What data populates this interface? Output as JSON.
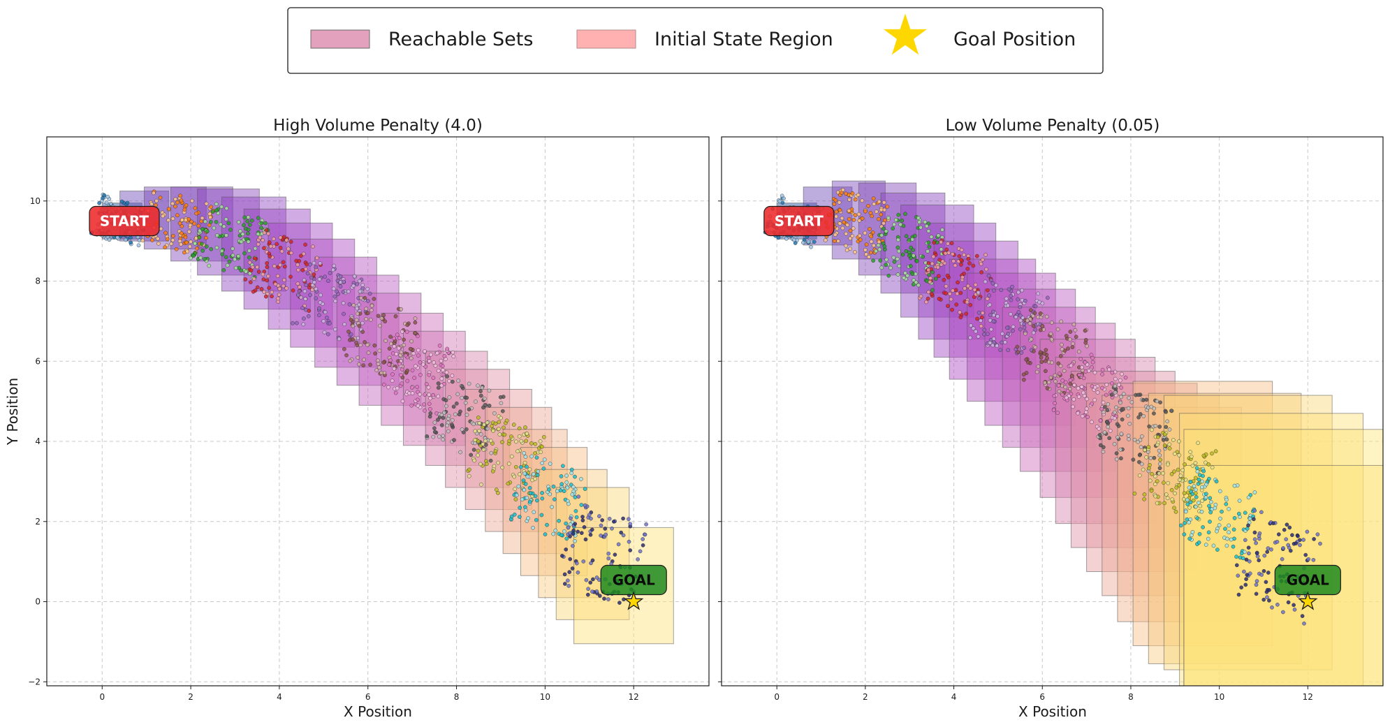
{
  "legend": {
    "items": [
      {
        "label": "Reachable Sets",
        "swatch": "rect",
        "color": "#e3a1bd"
      },
      {
        "label": "Initial State Region",
        "swatch": "rect",
        "color": "#ffb0b0"
      },
      {
        "label": "Goal Position",
        "swatch": "star",
        "color": "#ffd700"
      }
    ]
  },
  "chart_data": [
    {
      "type": "scatter",
      "title": "High Volume Penalty (4.0)",
      "xlabel": "X Position",
      "ylabel": "Y Position",
      "xlim": [
        -1.25,
        13.7
      ],
      "ylim": [
        -2.1,
        11.6
      ],
      "xticks": [
        0,
        2,
        4,
        6,
        8,
        10,
        12
      ],
      "yticks": [
        -2,
        0,
        2,
        4,
        6,
        8,
        10
      ],
      "grid": true,
      "start": {
        "x": 0.5,
        "y": 9.5,
        "label": "START"
      },
      "goal": {
        "x": 12,
        "y": 0,
        "label": "GOAL"
      },
      "clusters": [
        {
          "x": 0.4,
          "y": 9.5,
          "color": "#1f77b4",
          "light": "#9ec5e8",
          "halfw": 0.55,
          "halfh": 0.5
        },
        {
          "x": 1.7,
          "y": 9.45,
          "color": "#ff7f0e",
          "light": "#ffc48a",
          "halfw": 0.7,
          "halfh": 0.65
        },
        {
          "x": 2.9,
          "y": 9.0,
          "color": "#2ca02c",
          "light": "#a5df9c",
          "halfw": 0.75,
          "halfh": 0.75
        },
        {
          "x": 4.1,
          "y": 8.3,
          "color": "#d62728",
          "light": "#f2a0a0",
          "halfw": 0.75,
          "halfh": 0.8
        },
        {
          "x": 5.2,
          "y": 7.5,
          "color": "#9467bd",
          "light": "#cdb6e3",
          "halfw": 0.75,
          "halfh": 0.85
        },
        {
          "x": 6.3,
          "y": 6.6,
          "color": "#8c564b",
          "light": "#d2b0a8",
          "halfw": 0.75,
          "halfh": 0.85
        },
        {
          "x": 7.2,
          "y": 5.7,
          "color": "#e377c2",
          "light": "#f4bde3",
          "halfw": 0.75,
          "halfh": 0.85
        },
        {
          "x": 8.2,
          "y": 4.6,
          "color": "#595959",
          "light": "#bfbfbf",
          "halfw": 0.75,
          "halfh": 0.85
        },
        {
          "x": 9.1,
          "y": 3.6,
          "color": "#bcbd22",
          "light": "#e3e38c",
          "halfw": 0.75,
          "halfh": 0.9
        },
        {
          "x": 10.1,
          "y": 2.6,
          "color": "#17becf",
          "light": "#9de4ee",
          "halfw": 0.75,
          "halfh": 0.9
        },
        {
          "x": 11.3,
          "y": 1.2,
          "color": "#2a2d75",
          "light": "#6f74c9",
          "halfw": 0.85,
          "halfh": 1.1
        }
      ],
      "reachable_sets": [
        {
          "xmin": 0.0,
          "xmax": 0.9,
          "ymin": 9.05,
          "ymax": 9.95,
          "color": "#1f4e9c"
        },
        {
          "xmin": 0.4,
          "xmax": 1.5,
          "ymin": 9.0,
          "ymax": 10.25,
          "color": "#6c4ab7"
        },
        {
          "xmin": 0.95,
          "xmax": 2.35,
          "ymin": 8.8,
          "ymax": 10.35,
          "color": "#7a47b7"
        },
        {
          "xmin": 1.55,
          "xmax": 2.95,
          "ymin": 8.5,
          "ymax": 10.35,
          "color": "#8246bb"
        },
        {
          "xmin": 2.15,
          "xmax": 3.55,
          "ymin": 8.15,
          "ymax": 10.3,
          "color": "#8a44bd"
        },
        {
          "xmin": 2.7,
          "xmax": 4.15,
          "ymin": 7.75,
          "ymax": 10.1,
          "color": "#9144c0"
        },
        {
          "xmin": 3.2,
          "xmax": 4.7,
          "ymin": 7.3,
          "ymax": 9.8,
          "color": "#9a45c2"
        },
        {
          "xmin": 3.75,
          "xmax": 5.2,
          "ymin": 6.8,
          "ymax": 9.45,
          "color": "#a448c4"
        },
        {
          "xmin": 4.25,
          "xmax": 5.7,
          "ymin": 6.35,
          "ymax": 9.05,
          "color": "#ad4cc4"
        },
        {
          "xmin": 4.8,
          "xmax": 6.2,
          "ymin": 5.85,
          "ymax": 8.6,
          "color": "#b552c2"
        },
        {
          "xmin": 5.3,
          "xmax": 6.7,
          "ymin": 5.4,
          "ymax": 8.15,
          "color": "#bd5ac0"
        },
        {
          "xmin": 5.8,
          "xmax": 7.2,
          "ymin": 4.9,
          "ymax": 7.7,
          "color": "#c463bd"
        },
        {
          "xmin": 6.3,
          "xmax": 7.7,
          "ymin": 4.4,
          "ymax": 7.2,
          "color": "#cb6dba"
        },
        {
          "xmin": 6.8,
          "xmax": 8.2,
          "ymin": 3.9,
          "ymax": 6.75,
          "color": "#d278b5"
        },
        {
          "xmin": 7.3,
          "xmax": 8.7,
          "ymin": 3.4,
          "ymax": 6.25,
          "color": "#d884ae"
        },
        {
          "xmin": 7.75,
          "xmax": 9.2,
          "ymin": 2.85,
          "ymax": 5.8,
          "color": "#df90a7"
        },
        {
          "xmin": 8.2,
          "xmax": 9.7,
          "ymin": 2.3,
          "ymax": 5.3,
          "color": "#e69c9f"
        },
        {
          "xmin": 8.65,
          "xmax": 10.15,
          "ymin": 1.75,
          "ymax": 4.85,
          "color": "#eca896"
        },
        {
          "xmin": 9.05,
          "xmax": 10.5,
          "ymin": 1.2,
          "ymax": 4.3,
          "color": "#f2b48e"
        },
        {
          "xmin": 9.45,
          "xmax": 10.95,
          "ymin": 0.65,
          "ymax": 3.85,
          "color": "#f6bf87"
        },
        {
          "xmin": 9.85,
          "xmax": 11.4,
          "ymin": 0.1,
          "ymax": 3.3,
          "color": "#f8ca80"
        },
        {
          "xmin": 10.25,
          "xmax": 11.9,
          "ymin": -0.45,
          "ymax": 2.85,
          "color": "#fad67b"
        },
        {
          "xmin": 10.65,
          "xmax": 12.9,
          "ymin": -1.05,
          "ymax": 1.85,
          "color": "#fce178"
        }
      ]
    },
    {
      "type": "scatter",
      "title": "Low Volume Penalty (0.05)",
      "xlabel": "X Position",
      "ylabel": "",
      "xlim": [
        -1.25,
        13.7
      ],
      "ylim": [
        -2.1,
        11.6
      ],
      "xticks": [
        0,
        2,
        4,
        6,
        8,
        10,
        12
      ],
      "yticks": [
        -2,
        0,
        2,
        4,
        6,
        8,
        10
      ],
      "grid": true,
      "start": {
        "x": 0.5,
        "y": 9.5,
        "label": "START"
      },
      "goal": {
        "x": 12,
        "y": 0,
        "label": "GOAL"
      },
      "clusters": [
        {
          "x": 0.4,
          "y": 9.5,
          "color": "#1f77b4",
          "light": "#9ec5e8",
          "halfw": 0.55,
          "halfh": 0.5
        },
        {
          "x": 1.8,
          "y": 9.45,
          "color": "#ff7f0e",
          "light": "#ffc48a",
          "halfw": 0.65,
          "halfh": 0.7
        },
        {
          "x": 3.0,
          "y": 8.8,
          "color": "#2ca02c",
          "light": "#a5df9c",
          "halfw": 0.7,
          "halfh": 0.8
        },
        {
          "x": 4.1,
          "y": 8.0,
          "color": "#d62728",
          "light": "#f2a0a0",
          "halfw": 0.75,
          "halfh": 0.85
        },
        {
          "x": 5.2,
          "y": 7.1,
          "color": "#9467bd",
          "light": "#cdb6e3",
          "halfw": 0.75,
          "halfh": 0.85
        },
        {
          "x": 6.2,
          "y": 6.2,
          "color": "#8c564b",
          "light": "#d2b0a8",
          "halfw": 0.75,
          "halfh": 0.85
        },
        {
          "x": 7.1,
          "y": 5.3,
          "color": "#e377c2",
          "light": "#f4bde3",
          "halfw": 0.75,
          "halfh": 0.85
        },
        {
          "x": 8.1,
          "y": 4.3,
          "color": "#595959",
          "light": "#bfbfbf",
          "halfw": 0.75,
          "halfh": 0.85
        },
        {
          "x": 9.0,
          "y": 3.2,
          "color": "#bcbd22",
          "light": "#e3e38c",
          "halfw": 0.75,
          "halfh": 0.9
        },
        {
          "x": 10.0,
          "y": 2.2,
          "color": "#17becf",
          "light": "#9de4ee",
          "halfw": 0.75,
          "halfh": 0.9
        },
        {
          "x": 11.3,
          "y": 0.9,
          "color": "#2a2d75",
          "light": "#6f74c9",
          "halfw": 0.85,
          "halfh": 1.1
        }
      ],
      "reachable_sets": [
        {
          "xmin": 0.0,
          "xmax": 0.9,
          "ymin": 9.05,
          "ymax": 9.95,
          "color": "#1f4e9c"
        },
        {
          "xmin": 0.6,
          "xmax": 1.7,
          "ymin": 8.9,
          "ymax": 10.35,
          "color": "#6c4ab7"
        },
        {
          "xmin": 1.25,
          "xmax": 2.45,
          "ymin": 8.55,
          "ymax": 10.5,
          "color": "#7a47b7"
        },
        {
          "xmin": 1.85,
          "xmax": 3.15,
          "ymin": 8.15,
          "ymax": 10.45,
          "color": "#8246bb"
        },
        {
          "xmin": 2.35,
          "xmax": 3.8,
          "ymin": 7.7,
          "ymax": 10.2,
          "color": "#8a44bd"
        },
        {
          "xmin": 2.8,
          "xmax": 4.45,
          "ymin": 7.1,
          "ymax": 9.9,
          "color": "#9144c0"
        },
        {
          "xmin": 3.2,
          "xmax": 4.95,
          "ymin": 6.55,
          "ymax": 9.45,
          "color": "#9a45c2"
        },
        {
          "xmin": 3.55,
          "xmax": 5.45,
          "ymin": 6.1,
          "ymax": 9.0,
          "color": "#a448c4"
        },
        {
          "xmin": 3.9,
          "xmax": 5.85,
          "ymin": 5.55,
          "ymax": 8.55,
          "color": "#ad4cc4"
        },
        {
          "xmin": 4.3,
          "xmax": 6.3,
          "ymin": 5.0,
          "ymax": 8.2,
          "color": "#b552c2"
        },
        {
          "xmin": 4.7,
          "xmax": 6.75,
          "ymin": 4.4,
          "ymax": 7.8,
          "color": "#bd5ac0"
        },
        {
          "xmin": 5.1,
          "xmax": 7.2,
          "ymin": 3.85,
          "ymax": 7.35,
          "color": "#c463bd"
        },
        {
          "xmin": 5.5,
          "xmax": 7.65,
          "ymin": 3.25,
          "ymax": 6.95,
          "color": "#cb6dba"
        },
        {
          "xmin": 5.95,
          "xmax": 8.1,
          "ymin": 2.6,
          "ymax": 6.55,
          "color": "#d278b5"
        },
        {
          "xmin": 6.3,
          "xmax": 8.55,
          "ymin": 1.95,
          "ymax": 6.1,
          "color": "#d884ae"
        },
        {
          "xmin": 6.65,
          "xmax": 9.0,
          "ymin": 1.35,
          "ymax": 5.75,
          "color": "#df90a7"
        },
        {
          "xmin": 7.0,
          "xmax": 9.5,
          "ymin": 0.75,
          "ymax": 5.45,
          "color": "#e69c9f"
        },
        {
          "xmin": 7.35,
          "xmax": 10.0,
          "ymin": 0.15,
          "ymax": 5.15,
          "color": "#eca896"
        },
        {
          "xmin": 7.7,
          "xmax": 10.5,
          "ymin": -0.5,
          "ymax": 4.85,
          "color": "#f2b48e"
        },
        {
          "xmin": 8.05,
          "xmax": 11.2,
          "ymin": -1.1,
          "ymax": 5.5,
          "color": "#f6bf87"
        },
        {
          "xmin": 8.4,
          "xmax": 11.85,
          "ymin": -1.55,
          "ymax": 5.2,
          "color": "#f8ca80"
        },
        {
          "xmin": 8.75,
          "xmax": 12.55,
          "ymin": -1.7,
          "ymax": 5.15,
          "color": "#fad67b"
        },
        {
          "xmin": 9.1,
          "xmax": 13.25,
          "ymin": -2.1,
          "ymax": 4.7,
          "color": "#fce178"
        },
        {
          "xmin": 9.2,
          "xmax": 13.7,
          "ymin": -2.1,
          "ymax": 4.3,
          "color": "#fde47a"
        },
        {
          "xmin": 9.2,
          "xmax": 13.7,
          "ymin": -2.1,
          "ymax": 3.4,
          "color": "#fde47a"
        }
      ]
    }
  ]
}
